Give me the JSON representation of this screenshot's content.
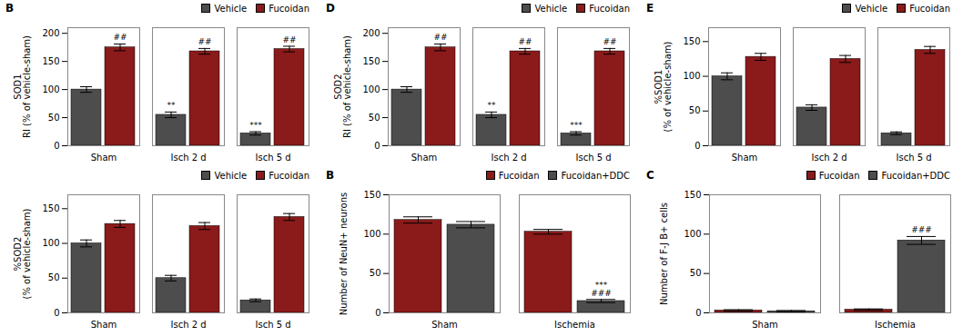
{
  "chart_data": [
    {
      "type": "bar",
      "title": "B",
      "ylabel": "SOD1\nRI (% of vehicle-sham)",
      "categories": [
        "Sham",
        "Isch 2 d",
        "Isch 5 d"
      ],
      "series": [
        {
          "name": "Vehicle",
          "color": "#4D4D4D",
          "values": [
            100,
            55,
            22
          ],
          "errors": [
            5,
            5,
            3
          ],
          "annotations": [
            null,
            "**",
            "***"
          ]
        },
        {
          "name": "Fucoidan",
          "color": "#8B1A1A",
          "values": [
            175,
            168,
            172
          ],
          "errors": [
            6,
            5,
            5
          ],
          "annotations": [
            "##",
            "##",
            "##"
          ]
        }
      ],
      "ylim": [
        0,
        210
      ],
      "yticks": [
        0,
        50,
        100,
        150,
        200
      ],
      "legend": "top-right",
      "grid": false
    },
    {
      "type": "bar",
      "title": "D",
      "ylabel": "SOD2\nRI (% of vehicle-sham)",
      "categories": [
        "Sham",
        "Isch 2 d",
        "Isch 5 d"
      ],
      "series": [
        {
          "name": "Vehicle",
          "color": "#4D4D4D",
          "values": [
            100,
            55,
            22
          ],
          "errors": [
            5,
            5,
            3
          ],
          "annotations": [
            null,
            "**",
            "***"
          ]
        },
        {
          "name": "Fucoidan",
          "color": "#8B1A1A",
          "values": [
            175,
            168,
            168
          ],
          "errors": [
            6,
            5,
            5
          ],
          "annotations": [
            "##",
            "##",
            "##"
          ]
        }
      ],
      "ylim": [
        0,
        210
      ],
      "yticks": [
        0,
        50,
        100,
        150,
        200
      ],
      "legend": "top-right",
      "grid": false
    },
    {
      "type": "bar",
      "title": "E",
      "ylabel": "%SOD1\n(% of vehicle-sham)",
      "categories": [
        "Sham",
        "Isch 2 d",
        "Isch 5 d"
      ],
      "series": [
        {
          "name": "Vehicle",
          "color": "#4D4D4D",
          "values": [
            100,
            55,
            18
          ],
          "errors": [
            5,
            4,
            2
          ]
        },
        {
          "name": "Fucoidan",
          "color": "#8B1A1A",
          "values": [
            128,
            125,
            138
          ],
          "errors": [
            5,
            5,
            5
          ]
        }
      ],
      "ylim": [
        0,
        170
      ],
      "yticks": [
        0,
        50,
        100,
        150
      ],
      "legend": "top-right",
      "grid": false
    },
    {
      "type": "bar",
      "ylabel": "%SOD2\n(% of vehicle-sham)",
      "categories": [
        "Sham",
        "Isch 2 d",
        "Isch 5 d"
      ],
      "series": [
        {
          "name": "Vehicle",
          "color": "#4D4D4D",
          "values": [
            100,
            50,
            18
          ],
          "errors": [
            5,
            4,
            2
          ]
        },
        {
          "name": "Fucoidan",
          "color": "#8B1A1A",
          "values": [
            128,
            125,
            138
          ],
          "errors": [
            5,
            5,
            5
          ]
        }
      ],
      "ylim": [
        0,
        170
      ],
      "yticks": [
        0,
        50,
        100,
        150
      ],
      "legend": "top-right",
      "grid": false
    },
    {
      "type": "bar",
      "title": "B",
      "ylabel": "Number of NeuN+ neurons",
      "categories": [
        "Sham",
        "Ischemia"
      ],
      "series": [
        {
          "name": "Fucoidan",
          "color": "#8B1A1A",
          "values": [
            118,
            103
          ],
          "errors": [
            4,
            3
          ]
        },
        {
          "name": "Fucoidan+DDC",
          "color": "#4D4D4D",
          "values": [
            112,
            15
          ],
          "errors": [
            4,
            2
          ],
          "annotations": [
            null,
            "***\n###"
          ]
        }
      ],
      "ylim": [
        0,
        150
      ],
      "yticks": [
        0,
        50,
        100,
        150
      ],
      "legend": "top-right",
      "grid": false
    },
    {
      "type": "bar",
      "title": "C",
      "ylabel": "Number of F-J B+ cells",
      "categories": [
        "Sham",
        "Ischemia"
      ],
      "series": [
        {
          "name": "Fucoidan",
          "color": "#8B1A1A",
          "values": [
            3,
            4
          ],
          "errors": [
            1,
            1
          ]
        },
        {
          "name": "Fucoidan+DDC",
          "color": "#4D4D4D",
          "values": [
            2,
            92
          ],
          "errors": [
            1,
            5
          ],
          "annotations": [
            null,
            "###"
          ]
        }
      ],
      "ylim": [
        0,
        150
      ],
      "yticks": [
        0,
        50,
        100,
        150
      ],
      "legend": "top-right",
      "grid": false
    }
  ]
}
